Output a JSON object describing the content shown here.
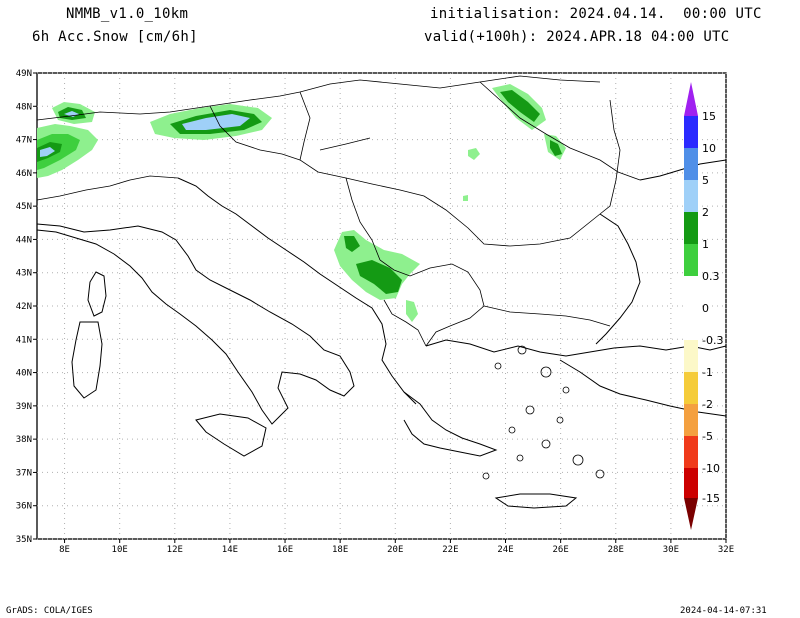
{
  "header": {
    "model": "NMMB_v1.0_10km",
    "field": "6h Acc.Snow [cm/6h]",
    "init": "initialisation: 2024.04.14.  00:00 UTC",
    "valid": "valid(+100h): 2024.APR.18 04:00 UTC"
  },
  "footer": {
    "credit": "GrADS: COLA/IGES",
    "timestamp": "2024-04-14-07:31"
  },
  "map": {
    "lon_range": [
      7,
      32
    ],
    "lat_range": [
      35,
      49
    ],
    "lon_ticks": [
      "8E",
      "10E",
      "12E",
      "14E",
      "16E",
      "18E",
      "20E",
      "22E",
      "24E",
      "26E",
      "28E",
      "30E",
      "32E"
    ],
    "lat_ticks": [
      "49N",
      "48N",
      "47N",
      "46N",
      "45N",
      "44N",
      "43N",
      "42N",
      "41N",
      "40N",
      "39N",
      "38N",
      "37N",
      "36N",
      "35N"
    ],
    "gridlines": "dotted"
  },
  "colorbar": {
    "labels": [
      "15",
      "10",
      "5",
      "2",
      "1",
      "0.3",
      "0",
      "-0.3",
      "-1",
      "-2",
      "-5",
      "-10",
      "-15"
    ],
    "colors": {
      "c15": "#a020f0",
      "c10": "#2a2aff",
      "c5": "#4f8fe8",
      "c2": "#9fd0f8",
      "c1": "#149a14",
      "c03": "#3ecf3e",
      "c0": "#8ef08e",
      "n03": "#fcf8c8",
      "n1": "#f5cc3a",
      "n2": "#f4a040",
      "n5": "#f03a1a",
      "n10": "#cc0000",
      "n15": "#7a0000"
    }
  }
}
